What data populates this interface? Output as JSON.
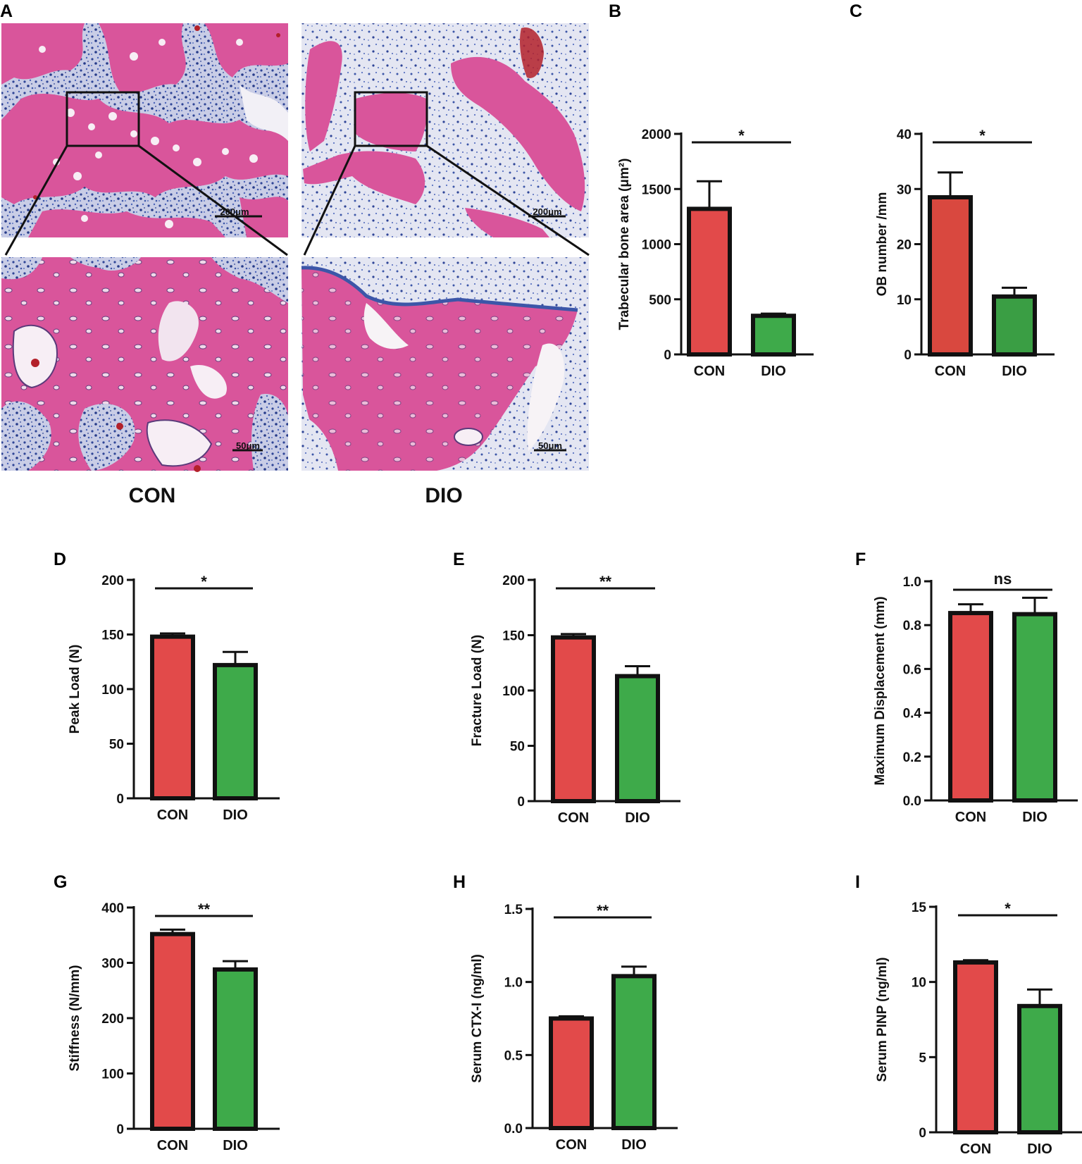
{
  "histology": {
    "panel_label": "A",
    "groups": [
      {
        "name": "CON",
        "scale_low": "200μm",
        "scale_high": "50μm"
      },
      {
        "name": "DIO",
        "scale_low": "200μm",
        "scale_high": "50μm"
      }
    ],
    "colors": {
      "bone": "#d9559b",
      "marrow": "#3c56a8",
      "background": "#f2f0f6",
      "blood": "#b3202a"
    }
  },
  "chart_data": [
    {
      "panel": "B",
      "type": "bar",
      "categories": [
        "CON",
        "DIO"
      ],
      "values": [
        1320,
        350
      ],
      "errors": [
        250,
        20
      ],
      "ylabel": "Trabecular bone area (μm²)",
      "ylim": [
        0,
        2000
      ],
      "yticks": [
        "0",
        "500",
        "1000",
        "1500",
        "2000"
      ],
      "significance": "*",
      "colors": [
        "#e24a4a",
        "#3eaa4a"
      ]
    },
    {
      "panel": "C",
      "type": "bar",
      "categories": [
        "CON",
        "DIO"
      ],
      "values": [
        28.5,
        10.5
      ],
      "errors": [
        4.5,
        1.6
      ],
      "ylabel": "OB number /mm",
      "ylim": [
        0,
        40
      ],
      "yticks": [
        "0",
        "10",
        "20",
        "30",
        "40"
      ],
      "significance": "*",
      "colors": [
        "#d9483f",
        "#3a9e44"
      ]
    },
    {
      "panel": "D",
      "type": "bar",
      "categories": [
        "CON",
        "DIO"
      ],
      "values": [
        148,
        122
      ],
      "errors": [
        3,
        12
      ],
      "ylabel": "Peak Load (N)",
      "ylim": [
        0,
        200
      ],
      "yticks": [
        "0",
        "50",
        "100",
        "150",
        "200"
      ],
      "significance": "*",
      "colors": [
        "#e24a4a",
        "#3eaa4a"
      ]
    },
    {
      "panel": "E",
      "type": "bar",
      "categories": [
        "CON",
        "DIO"
      ],
      "values": [
        148,
        113
      ],
      "errors": [
        3,
        9
      ],
      "ylabel": "Fracture Load (N)",
      "ylim": [
        0,
        200
      ],
      "yticks": [
        "0",
        "50",
        "100",
        "150",
        "200"
      ],
      "significance": "**",
      "colors": [
        "#e24a4a",
        "#3eaa4a"
      ]
    },
    {
      "panel": "F",
      "type": "bar",
      "categories": [
        "CON",
        "DIO"
      ],
      "values": [
        0.855,
        0.85
      ],
      "errors": [
        0.04,
        0.075
      ],
      "ylabel": "Maximum Displacement (mm)",
      "ylim": [
        0,
        1.0
      ],
      "yticks": [
        "0.0",
        "0.2",
        "0.4",
        "0.6",
        "0.8",
        "1.0"
      ],
      "significance": "ns",
      "colors": [
        "#e24a4a",
        "#3eaa4a"
      ]
    },
    {
      "panel": "G",
      "type": "bar",
      "categories": [
        "CON",
        "DIO"
      ],
      "values": [
        352,
        288
      ],
      "errors": [
        8,
        15
      ],
      "ylabel": "Stiffness (N/mm)",
      "ylim": [
        0,
        400
      ],
      "yticks": [
        "0",
        "100",
        "200",
        "300",
        "400"
      ],
      "significance": "**",
      "colors": [
        "#e24a4a",
        "#3eaa4a"
      ]
    },
    {
      "panel": "H",
      "type": "bar",
      "categories": [
        "CON",
        "DIO"
      ],
      "values": [
        0.75,
        1.04
      ],
      "errors": [
        0.015,
        0.065
      ],
      "ylabel": "Serum CTX-I (ng/ml)",
      "ylim": [
        0,
        1.5
      ],
      "yticks": [
        "0.0",
        "0.5",
        "1.0",
        "1.5"
      ],
      "significance": "**",
      "colors": [
        "#e24a4a",
        "#3eaa4a"
      ]
    },
    {
      "panel": "I",
      "type": "bar",
      "categories": [
        "CON",
        "DIO"
      ],
      "values": [
        11.3,
        8.4
      ],
      "errors": [
        0.15,
        1.1
      ],
      "ylabel": "Serum PINP (ng/ml)",
      "ylim": [
        0,
        15
      ],
      "yticks": [
        "0",
        "5",
        "10",
        "15"
      ],
      "significance": "*",
      "colors": [
        "#e24a4a",
        "#3eaa4a"
      ]
    }
  ]
}
